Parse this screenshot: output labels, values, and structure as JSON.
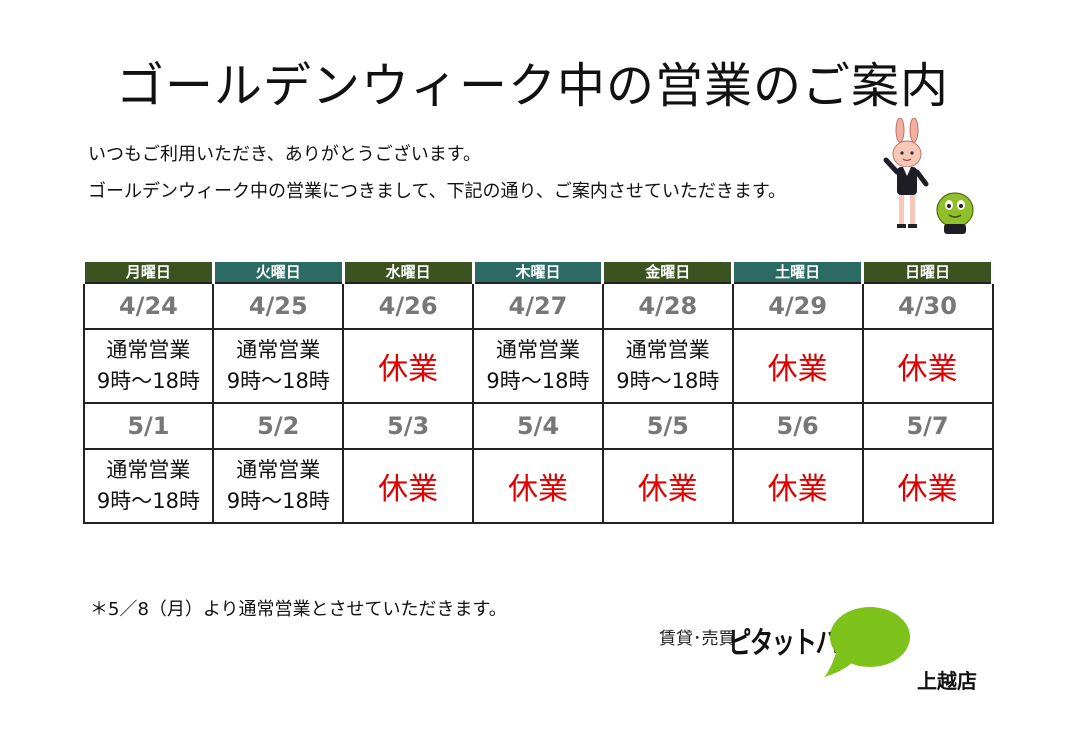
{
  "title": "ゴールデンウィーク中の営業のご案内",
  "intro": [
    "いつもご利用いただき、ありがとうございます。",
    "ゴールデンウィーク中の営業につきまして、下記の通り、ご案内させていただきます。"
  ],
  "days": [
    "月曜日",
    "火曜日",
    "水曜日",
    "木曜日",
    "金曜日",
    "土曜日",
    "日曜日"
  ],
  "weeks": [
    {
      "dates": [
        "4/24",
        "4/25",
        "4/26",
        "4/27",
        "4/28",
        "4/29",
        "4/30"
      ],
      "status": [
        {
          "type": "open",
          "line1": "通常営業",
          "line2": "9時～18時"
        },
        {
          "type": "open",
          "line1": "通常営業",
          "line2": "9時～18時"
        },
        {
          "type": "closed",
          "line1": "休業"
        },
        {
          "type": "open",
          "line1": "通常営業",
          "line2": "9時～18時"
        },
        {
          "type": "open",
          "line1": "通常営業",
          "line2": "9時～18時"
        },
        {
          "type": "closed",
          "line1": "休業"
        },
        {
          "type": "closed",
          "line1": "休業"
        }
      ]
    },
    {
      "dates": [
        "5/1",
        "5/2",
        "5/3",
        "5/4",
        "5/5",
        "5/6",
        "5/7"
      ],
      "status": [
        {
          "type": "open",
          "line1": "通常営業",
          "line2": "9時～18時"
        },
        {
          "type": "open",
          "line1": "通常営業",
          "line2": "9時～18時"
        },
        {
          "type": "closed",
          "line1": "休業"
        },
        {
          "type": "closed",
          "line1": "休業"
        },
        {
          "type": "closed",
          "line1": "休業"
        },
        {
          "type": "closed",
          "line1": "休業"
        },
        {
          "type": "closed",
          "line1": "休業"
        }
      ]
    }
  ],
  "note": "＊5／8（月）より通常営業とさせていただきます。",
  "logo": {
    "left_text": "賃貸･売買",
    "brand": "ピタットハウス",
    "branch": "上越店"
  },
  "colors": {
    "header_dark": "#3b5221",
    "header_teal": "#2b6b63",
    "closed_red": "#e00000",
    "date_gray": "#777777",
    "bubble_green": "#7ec21c"
  }
}
